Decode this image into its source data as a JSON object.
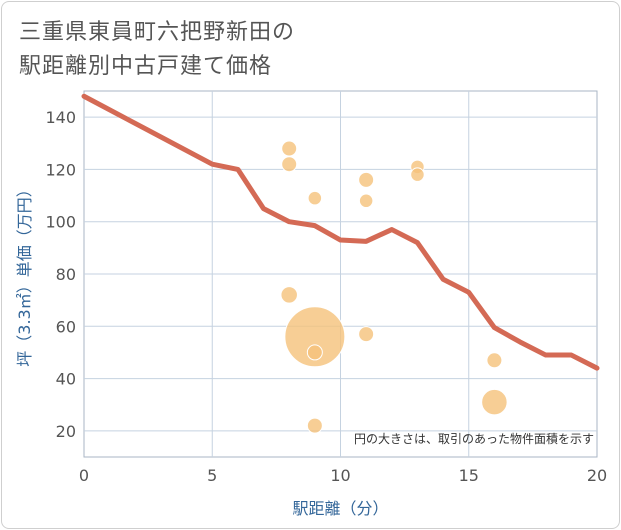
{
  "title_lines": [
    "三重県東員町六把野新田の",
    "駅距離別中古戸建て価格"
  ],
  "chart_data": {
    "type": "scatter",
    "title": "三重県東員町六把野新田の駅距離別中古戸建て価格",
    "xlabel": "駅距離（分）",
    "ylabel": "坪（3.3㎡）単価（万円）",
    "xlim": [
      0,
      20
    ],
    "ylim": [
      10,
      150
    ],
    "xticks": [
      0,
      5,
      10,
      15,
      20
    ],
    "yticks": [
      20,
      40,
      60,
      80,
      100,
      120,
      140
    ],
    "grid": true,
    "note": "円の大きさは、取引のあった物件面積を示す",
    "point_color": "#f5c27a",
    "line_color": "#d46a55",
    "points": [
      {
        "x": 8,
        "y": 128,
        "r": 1.0
      },
      {
        "x": 8,
        "y": 122,
        "r": 1.0
      },
      {
        "x": 8,
        "y": 72,
        "r": 1.1
      },
      {
        "x": 9,
        "y": 109,
        "r": 0.9
      },
      {
        "x": 9,
        "y": 56,
        "r": 4.0
      },
      {
        "x": 9,
        "y": 50,
        "r": 1.0
      },
      {
        "x": 9,
        "y": 22,
        "r": 1.0
      },
      {
        "x": 11,
        "y": 116,
        "r": 1.0
      },
      {
        "x": 11,
        "y": 108,
        "r": 0.9
      },
      {
        "x": 11,
        "y": 57,
        "r": 1.0
      },
      {
        "x": 13,
        "y": 121,
        "r": 0.9
      },
      {
        "x": 13,
        "y": 118,
        "r": 0.9
      },
      {
        "x": 16,
        "y": 47,
        "r": 1.0
      },
      {
        "x": 16,
        "y": 31,
        "r": 1.7
      }
    ],
    "trend": {
      "x": [
        0,
        5,
        6,
        7,
        8,
        9,
        10,
        11,
        12,
        13,
        14,
        15,
        16,
        17,
        18,
        19,
        20
      ],
      "y": [
        148,
        122,
        120,
        105,
        100,
        98.5,
        93,
        92.5,
        97,
        92,
        78,
        73,
        59.5,
        54,
        49,
        49,
        44
      ]
    }
  }
}
